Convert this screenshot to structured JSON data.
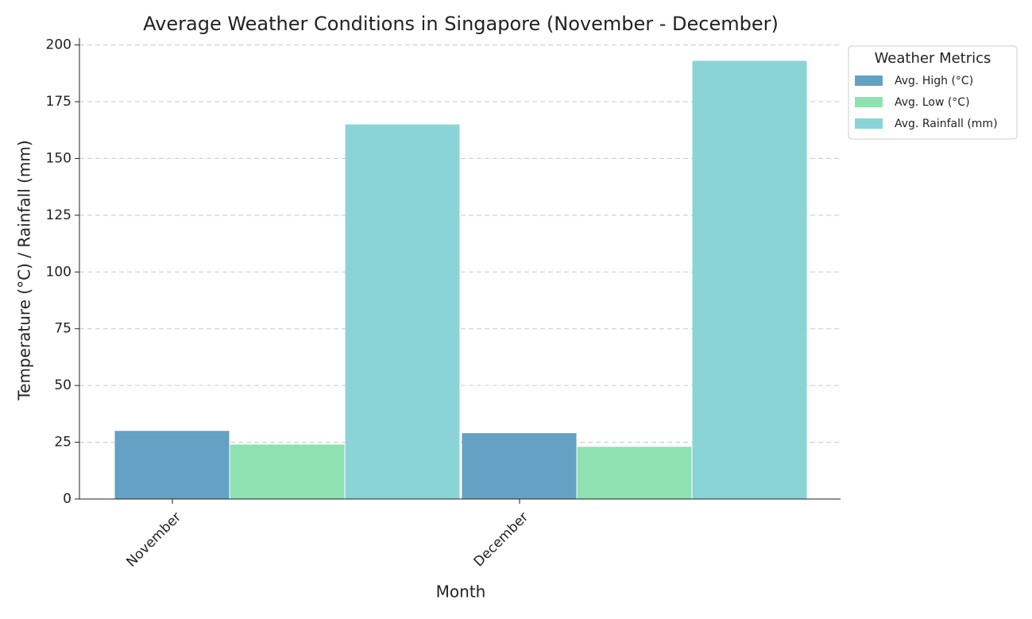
{
  "chart_data": {
    "type": "bar",
    "title": "Average Weather Conditions in Singapore (November - December)",
    "x_label": "Month",
    "y_label": "Temperature (°C) / Rainfall (mm)",
    "categories": [
      "November",
      "December"
    ],
    "series": [
      {
        "name": "Avg. High (°C)",
        "color": "#64a1c4",
        "values": [
          30,
          29
        ]
      },
      {
        "name": "Avg. Low (°C)",
        "color": "#8ee2b2",
        "values": [
          24,
          23
        ]
      },
      {
        "name": "Avg. Rainfall (mm)",
        "color": "#8ad4d8",
        "values": [
          165,
          193
        ]
      }
    ],
    "ylim": [
      0,
      203
    ],
    "yticks": [
      0,
      25,
      50,
      75,
      100,
      125,
      150,
      175,
      200
    ],
    "grid": true,
    "legend_title": "Weather Metrics",
    "legend": "outside-upper-right"
  }
}
